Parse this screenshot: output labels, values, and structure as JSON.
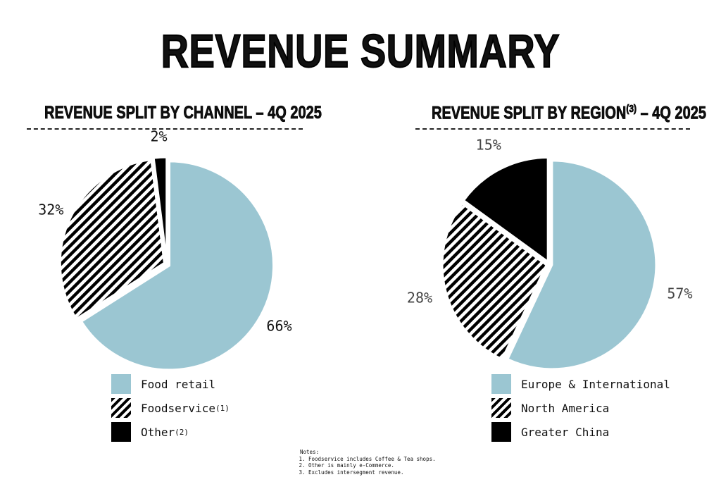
{
  "title": "REVENUE SUMMARY",
  "colors": {
    "blue": "#9bc6d2",
    "black": "#000000",
    "hatch": "hatch"
  },
  "chart_data": [
    {
      "type": "pie",
      "title": "REVENUE SPLIT BY CHANNEL – 4Q 2025",
      "title_note": "",
      "categories": [
        "Food retail",
        "Foodservice",
        "Other"
      ],
      "category_notes": [
        "",
        "(1)",
        "(2)"
      ],
      "values": [
        66,
        32,
        2
      ],
      "labels": [
        "66%",
        "32%",
        "2%"
      ],
      "fills": [
        "blue",
        "hatch",
        "black"
      ],
      "legend": "bottom"
    },
    {
      "type": "pie",
      "title": "REVENUE SPLIT BY REGION",
      "title_note": "(3)",
      "title_suffix": "– 4Q 2025",
      "categories": [
        "Europe & International",
        "North America",
        "Greater China"
      ],
      "category_notes": [
        "",
        "",
        ""
      ],
      "values": [
        57,
        28,
        15
      ],
      "labels": [
        "57%",
        "28%",
        "15%"
      ],
      "fills": [
        "blue",
        "hatch",
        "black"
      ],
      "legend": "bottom"
    }
  ],
  "notes": {
    "heading": "Notes:",
    "items": [
      "Foodservice includes Coffee & Tea shops.",
      "Other is mainly e-Commerce.",
      "Excludes intersegment revenue."
    ]
  }
}
